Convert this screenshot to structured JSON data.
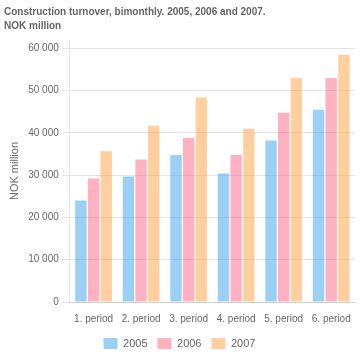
{
  "chart_data": {
    "type": "bar",
    "title": "Construction turnover, bimonthly. 2005, 2006 and 2007.",
    "subtitle": "NOK million",
    "y_label": "NOK million",
    "categories": [
      "1. period",
      "2. period",
      "3. period",
      "4. period",
      "5. period",
      "6. period"
    ],
    "series": [
      {
        "name": "2005",
        "values": [
          24000,
          29700,
          34800,
          30400,
          38200,
          45500
        ]
      },
      {
        "name": "2006",
        "values": [
          29200,
          33700,
          38800,
          34800,
          44800,
          53000
        ]
      },
      {
        "name": "2007",
        "values": [
          35700,
          41700,
          48400,
          41000,
          53000,
          58500
        ]
      }
    ],
    "ylim": [
      0,
      62000
    ],
    "yticks": [
      0,
      {
        "value": 10000,
        "label": "10 000"
      },
      {
        "value": 20000,
        "label": "20 000"
      },
      {
        "value": 30000,
        "label": "30 000"
      },
      {
        "value": 40000,
        "label": "40 000"
      },
      {
        "value": 50000,
        "label": "50 000"
      },
      {
        "value": 60000,
        "label": "60 000"
      }
    ],
    "grid": true,
    "legend": "bottom"
  }
}
